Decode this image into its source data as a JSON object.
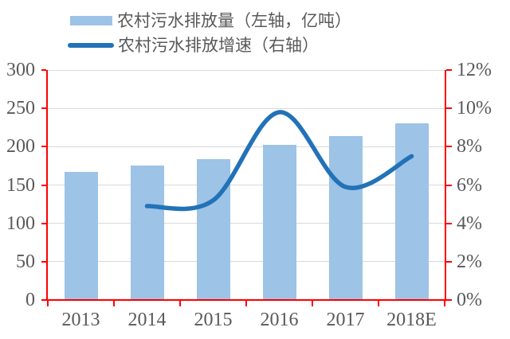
{
  "chart_data": {
    "type": "combo-bar-line",
    "title": "",
    "categories": [
      "2013",
      "2014",
      "2015",
      "2016",
      "2017",
      "2018E"
    ],
    "series": [
      {
        "name": "农村污水排放量（左轴，亿吨）",
        "type": "bar",
        "axis": "left",
        "values": [
          167,
          175,
          184,
          202,
          214,
          230
        ]
      },
      {
        "name": "农村污水排放增速（右轴）",
        "type": "line",
        "axis": "right",
        "unit": "%",
        "values": [
          null,
          4.9,
          5.2,
          9.8,
          5.9,
          7.5
        ]
      }
    ],
    "left_axis": {
      "min": 0,
      "max": 300,
      "step": 50,
      "tick_labels": [
        "0",
        "50",
        "100",
        "150",
        "200",
        "250",
        "300"
      ]
    },
    "right_axis": {
      "min": 0,
      "max": 12,
      "step": 2,
      "tick_labels": [
        "0%",
        "2%",
        "4%",
        "6%",
        "8%",
        "10%",
        "12%"
      ]
    },
    "grid": true,
    "legend_position": "top-left"
  },
  "colors": {
    "bar_fill": "#9DC3E6",
    "line_stroke": "#2272B8",
    "axis_line": "#FF0000",
    "gridline": "#D9D9D9",
    "label_text": "#595959",
    "background": "#FFFFFF"
  }
}
